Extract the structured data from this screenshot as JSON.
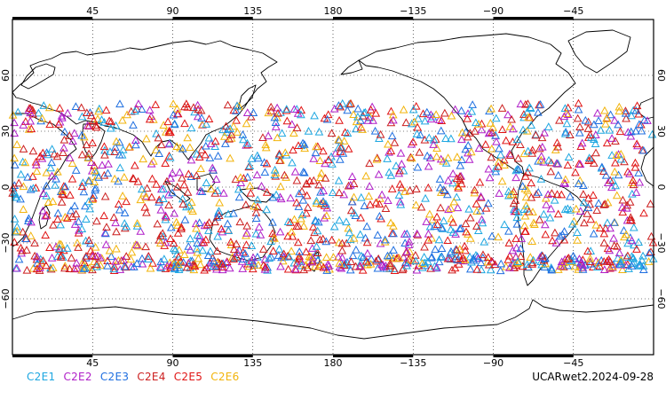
{
  "map": {
    "lon_ticks": [
      "45",
      "90",
      "135",
      "180",
      "−135",
      "−90",
      "−45"
    ],
    "lat_ticks": [
      "60",
      "30",
      "0",
      "−30",
      "−60"
    ],
    "lat_values": [
      60,
      30,
      0,
      -30,
      -60
    ],
    "lon_values": [
      45,
      90,
      135,
      180,
      225,
      270,
      315
    ],
    "lat_range": [
      -90,
      90
    ],
    "lon_range": [
      0,
      360
    ],
    "obs_lat_band": [
      -45,
      45
    ],
    "grid": "dotted",
    "marker": "triangle"
  },
  "legend": {
    "items": [
      {
        "label": "C2E1",
        "color": "#1ea7e1"
      },
      {
        "label": "C2E2",
        "color": "#b01fc8"
      },
      {
        "label": "C2E3",
        "color": "#1f6fe0"
      },
      {
        "label": "C2E4",
        "color": "#cc1f1f"
      },
      {
        "label": "C2E5",
        "color": "#e01414"
      },
      {
        "label": "C2E6",
        "color": "#f2b40c"
      }
    ]
  },
  "footer": {
    "label": "UCARwet2.2024-09-28"
  }
}
